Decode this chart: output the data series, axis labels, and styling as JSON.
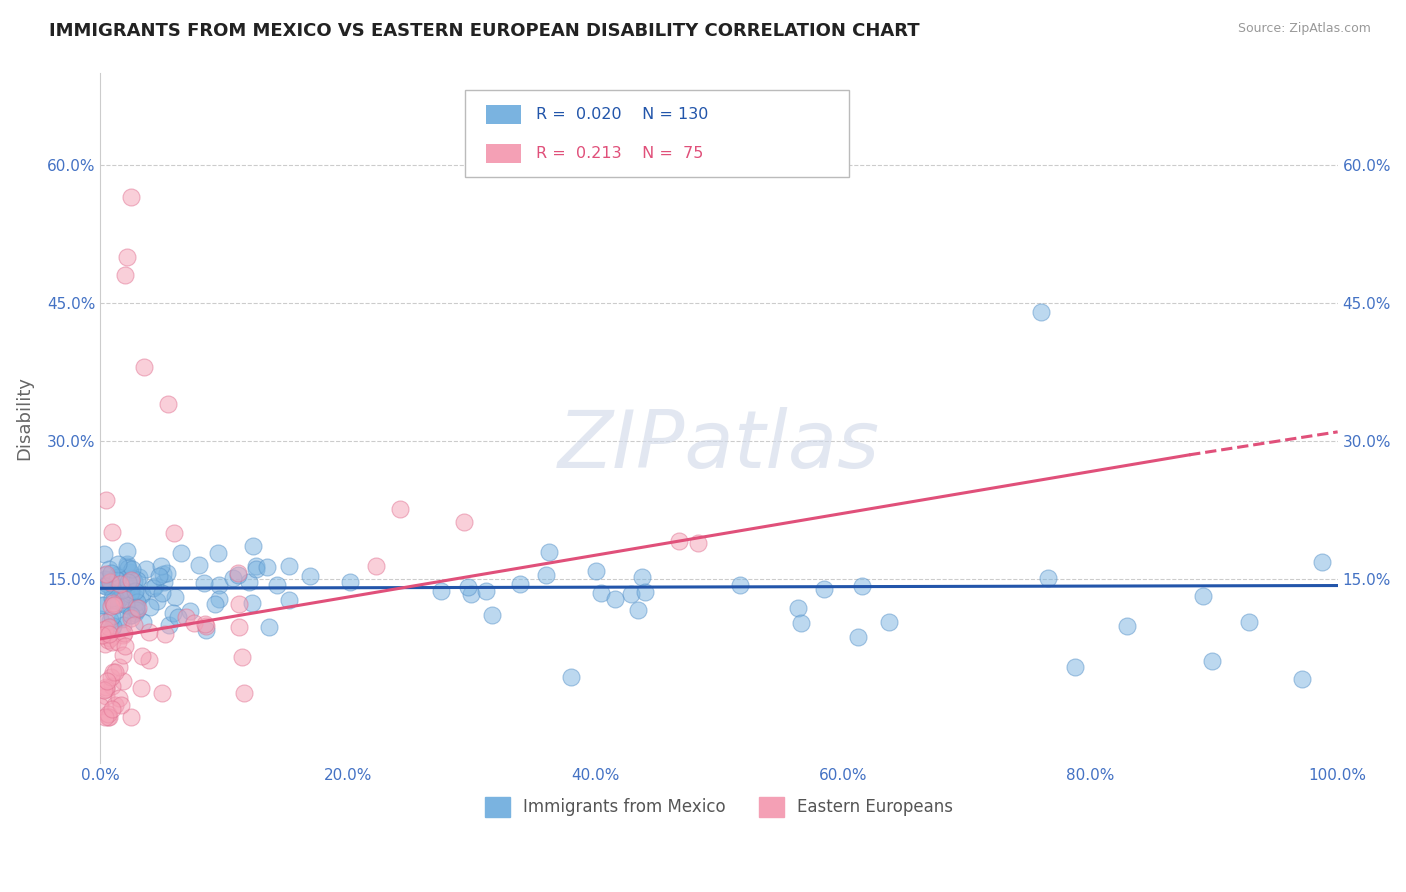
{
  "title": "IMMIGRANTS FROM MEXICO VS EASTERN EUROPEAN DISABILITY CORRELATION CHART",
  "source": "Source: ZipAtlas.com",
  "ylabel": "Disability",
  "watermark": "ZIPatlas",
  "legend_entries": [
    {
      "label": "Immigrants from Mexico",
      "color": "#7ab3e0",
      "R": "0.020",
      "N": "130"
    },
    {
      "label": "Eastern Europeans",
      "color": "#f4a0b5",
      "R": "0.213",
      "N": "75"
    }
  ],
  "blue_line": {
    "x0": 0.0,
    "x1": 1.0,
    "y0": 0.14,
    "y1": 0.143
  },
  "pink_line_solid": {
    "x0": 0.0,
    "x1": 0.88,
    "y0": 0.085,
    "y1": 0.285
  },
  "pink_line_dash": {
    "x0": 0.88,
    "x1": 1.0,
    "y0": 0.285,
    "y1": 0.31
  },
  "xlim": [
    0.0,
    1.0
  ],
  "ylim": [
    -0.05,
    0.7
  ],
  "xticks": [
    0.0,
    0.2,
    0.4,
    0.6,
    0.8,
    1.0
  ],
  "xticklabels": [
    "0.0%",
    "20.0%",
    "40.0%",
    "60.0%",
    "80.0%",
    "100.0%"
  ],
  "yticks": [
    0.15,
    0.3,
    0.45,
    0.6
  ],
  "yticklabels": [
    "15.0%",
    "30.0%",
    "45.0%",
    "60.0%"
  ],
  "grid_color": "#cccccc",
  "background_color": "#ffffff",
  "title_color": "#222222",
  "axis_label_color": "#666666",
  "tick_label_color": "#4472c4",
  "blue_color": "#7ab3e0",
  "blue_edge_color": "#5590c8",
  "pink_color": "#f4a0b5",
  "pink_edge_color": "#e07090",
  "blue_line_color": "#2255aa",
  "pink_line_color": "#e0507a"
}
